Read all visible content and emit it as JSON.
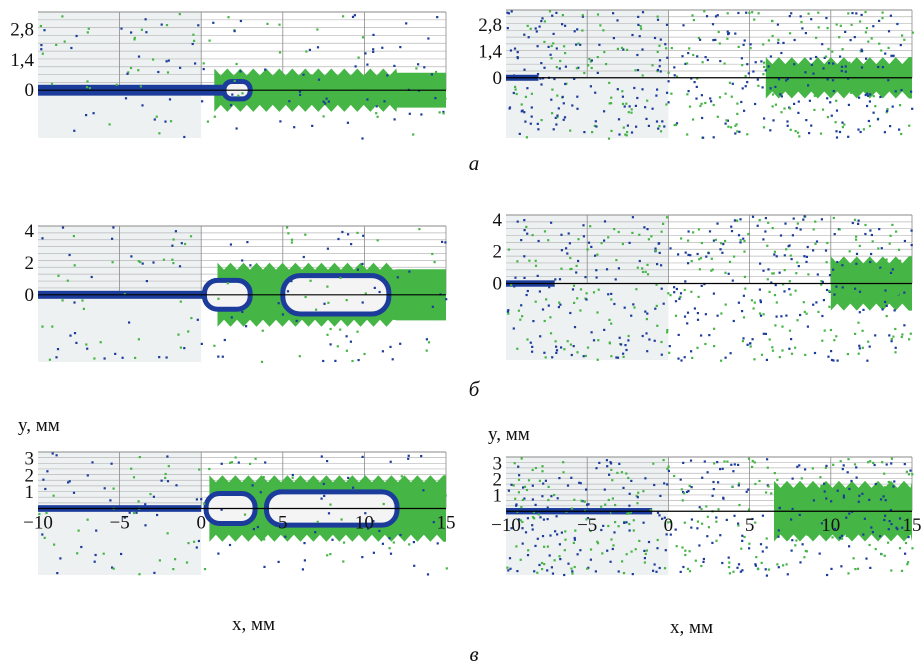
{
  "figure": {
    "captions": {
      "a": "а",
      "b": "б",
      "c": "в"
    },
    "y_axis_label": "y, мм",
    "x_axis_label": "x, мм"
  },
  "colors": {
    "background_region": "#eef1f2",
    "grid": "#8a8a8a",
    "axis": "#000000",
    "blue": "#1c3c9c",
    "green": "#45b545"
  },
  "chart_data": [
    {
      "panel": "a-left",
      "type": "heatmap",
      "xlim": [
        -10,
        15
      ],
      "ylim": [
        -2.2,
        3.6
      ],
      "y_ticks": [
        {
          "v": 0,
          "label": "0"
        },
        {
          "v": 1.4,
          "label": "1,4"
        },
        {
          "v": 2.8,
          "label": "2,8"
        }
      ],
      "x_ticks": [],
      "green_half_width": 1.0,
      "green_start": 0.8,
      "green_narrow_from": 12.0,
      "green_narrow_half_width": 0.8,
      "blue_core_half_width": 0.25,
      "blue_core_end": 2.5,
      "cavities": [
        {
          "x0": 1.4,
          "x1": 3.0,
          "h": 0.4
        }
      ],
      "dots": "sparse"
    },
    {
      "panel": "a-right",
      "type": "heatmap",
      "xlim": [
        -10,
        15
      ],
      "ylim": [
        -3.2,
        3.6
      ],
      "y_ticks": [
        {
          "v": 0,
          "label": "0"
        },
        {
          "v": 1.4,
          "label": "1,4"
        },
        {
          "v": 2.8,
          "label": "2,8"
        }
      ],
      "x_ticks": [],
      "green_half_width": 1.1,
      "green_start": 6.0,
      "green_narrow_from": 15.0,
      "green_narrow_half_width": 1.1,
      "blue_core_half_width": 0.15,
      "blue_core_end": -8.0,
      "cavities": [],
      "dots": "dense"
    },
    {
      "panel": "b-left",
      "type": "heatmap",
      "xlim": [
        -10,
        15
      ],
      "ylim": [
        -4.2,
        4.3
      ],
      "y_ticks": [
        {
          "v": 0,
          "label": "0"
        },
        {
          "v": 2,
          "label": "2"
        },
        {
          "v": 4,
          "label": "4"
        }
      ],
      "x_ticks": [],
      "green_half_width": 2.0,
      "green_start": 1.0,
      "green_narrow_from": 12.0,
      "green_narrow_half_width": 1.6,
      "blue_core_half_width": 0.25,
      "blue_core_end": 1.0,
      "cavities": [
        {
          "x0": 0.2,
          "x1": 3.0,
          "h": 0.9
        },
        {
          "x0": 5.0,
          "x1": 11.5,
          "h": 1.2
        }
      ],
      "dots": "sparse"
    },
    {
      "panel": "b-right",
      "type": "heatmap",
      "xlim": [
        -10,
        15
      ],
      "ylim": [
        -4.8,
        4.3
      ],
      "y_ticks": [
        {
          "v": 0,
          "label": "0"
        },
        {
          "v": 2,
          "label": "2"
        },
        {
          "v": 4,
          "label": "4"
        }
      ],
      "x_ticks": [],
      "green_half_width": 1.7,
      "green_start": 10.0,
      "green_narrow_from": 15.0,
      "green_narrow_half_width": 1.7,
      "blue_core_half_width": 0.2,
      "blue_core_end": -7.0,
      "cavities": [],
      "dots": "dense"
    },
    {
      "panel": "c-left",
      "type": "heatmap",
      "xlim": [
        -10,
        15
      ],
      "ylim": [
        -4.0,
        3.4
      ],
      "y_ticks": [
        {
          "v": 1,
          "label": "1"
        },
        {
          "v": 2,
          "label": "2"
        },
        {
          "v": 3,
          "label": "3"
        }
      ],
      "x_ticks": [
        {
          "v": -10,
          "label": "−10"
        },
        {
          "v": -5,
          "label": "−5"
        },
        {
          "v": 0,
          "label": "0"
        },
        {
          "v": 5,
          "label": "5"
        },
        {
          "v": 10,
          "label": "10"
        },
        {
          "v": 15,
          "label": "15"
        }
      ],
      "green_half_width": 2.0,
      "green_start": 0.5,
      "green_narrow_from": 15.0,
      "green_narrow_half_width": 2.0,
      "blue_core_half_width": 0.2,
      "blue_core_end": 0.0,
      "cavities": [
        {
          "x0": 0.3,
          "x1": 3.3,
          "h": 0.9
        },
        {
          "x0": 4.0,
          "x1": 12.0,
          "h": 1.0
        }
      ],
      "dots": "sparse"
    },
    {
      "panel": "c-right",
      "type": "heatmap",
      "xlim": [
        -10,
        15
      ],
      "ylim": [
        -4.0,
        3.4
      ],
      "y_ticks": [
        {
          "v": 1,
          "label": "1"
        },
        {
          "v": 2,
          "label": "2"
        },
        {
          "v": 3,
          "label": "3"
        }
      ],
      "x_ticks": [
        {
          "v": -10,
          "label": "−10"
        },
        {
          "v": -5,
          "label": "−5"
        },
        {
          "v": 0,
          "label": "0"
        },
        {
          "v": 5,
          "label": "5"
        },
        {
          "v": 10,
          "label": "10"
        },
        {
          "v": 15,
          "label": "15"
        }
      ],
      "green_half_width": 1.9,
      "green_start": 6.5,
      "green_narrow_from": 15.0,
      "green_narrow_half_width": 1.9,
      "blue_core_half_width": 0.2,
      "blue_core_end": -1.0,
      "cavities": [],
      "dots": "dense"
    }
  ]
}
